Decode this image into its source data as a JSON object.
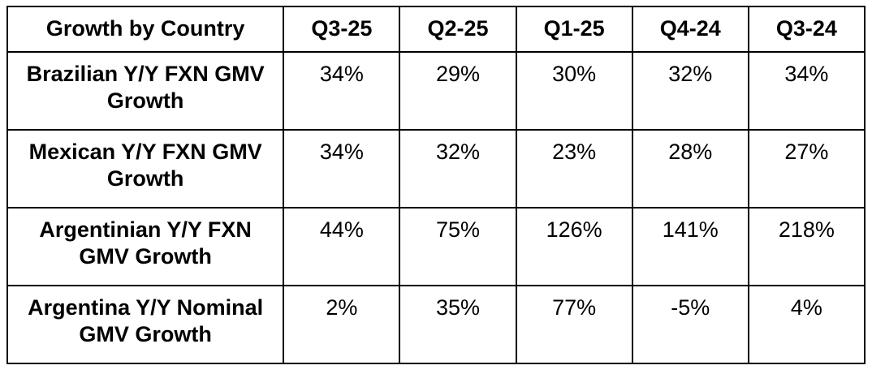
{
  "table": {
    "header": [
      "Growth by Country",
      "Q3-25",
      "Q2-25",
      "Q1-25",
      "Q4-24",
      "Q3-24"
    ],
    "rows": [
      {
        "label": "Brazilian Y/Y FXN GMV Growth",
        "values": [
          "34%",
          "29%",
          "30%",
          "32%",
          "34%"
        ]
      },
      {
        "label": "Mexican Y/Y FXN GMV Growth",
        "values": [
          "34%",
          "32%",
          "23%",
          "28%",
          "27%"
        ]
      },
      {
        "label": "Argentinian Y/Y FXN GMV Growth",
        "values": [
          "44%",
          "75%",
          "126%",
          "141%",
          "218%"
        ]
      },
      {
        "label": "Argentina Y/Y Nominal GMV Growth",
        "values": [
          "2%",
          "35%",
          "77%",
          "-5%",
          "4%"
        ]
      }
    ]
  },
  "chart_data": {
    "type": "table",
    "title": "Growth by Country",
    "columns": [
      "Q3-25",
      "Q2-25",
      "Q1-25",
      "Q4-24",
      "Q3-24"
    ],
    "rows": [
      {
        "name": "Brazilian Y/Y FXN GMV Growth",
        "values_pct": [
          34,
          29,
          30,
          32,
          34
        ]
      },
      {
        "name": "Mexican Y/Y FXN GMV Growth",
        "values_pct": [
          34,
          32,
          23,
          28,
          27
        ]
      },
      {
        "name": "Argentinian Y/Y FXN GMV Growth",
        "values_pct": [
          44,
          75,
          126,
          141,
          218
        ]
      },
      {
        "name": "Argentina Y/Y Nominal GMV Growth",
        "values_pct": [
          2,
          35,
          77,
          -5,
          4
        ]
      }
    ]
  },
  "colors": {
    "border": "#000000",
    "text": "#000000",
    "background": "#ffffff"
  }
}
